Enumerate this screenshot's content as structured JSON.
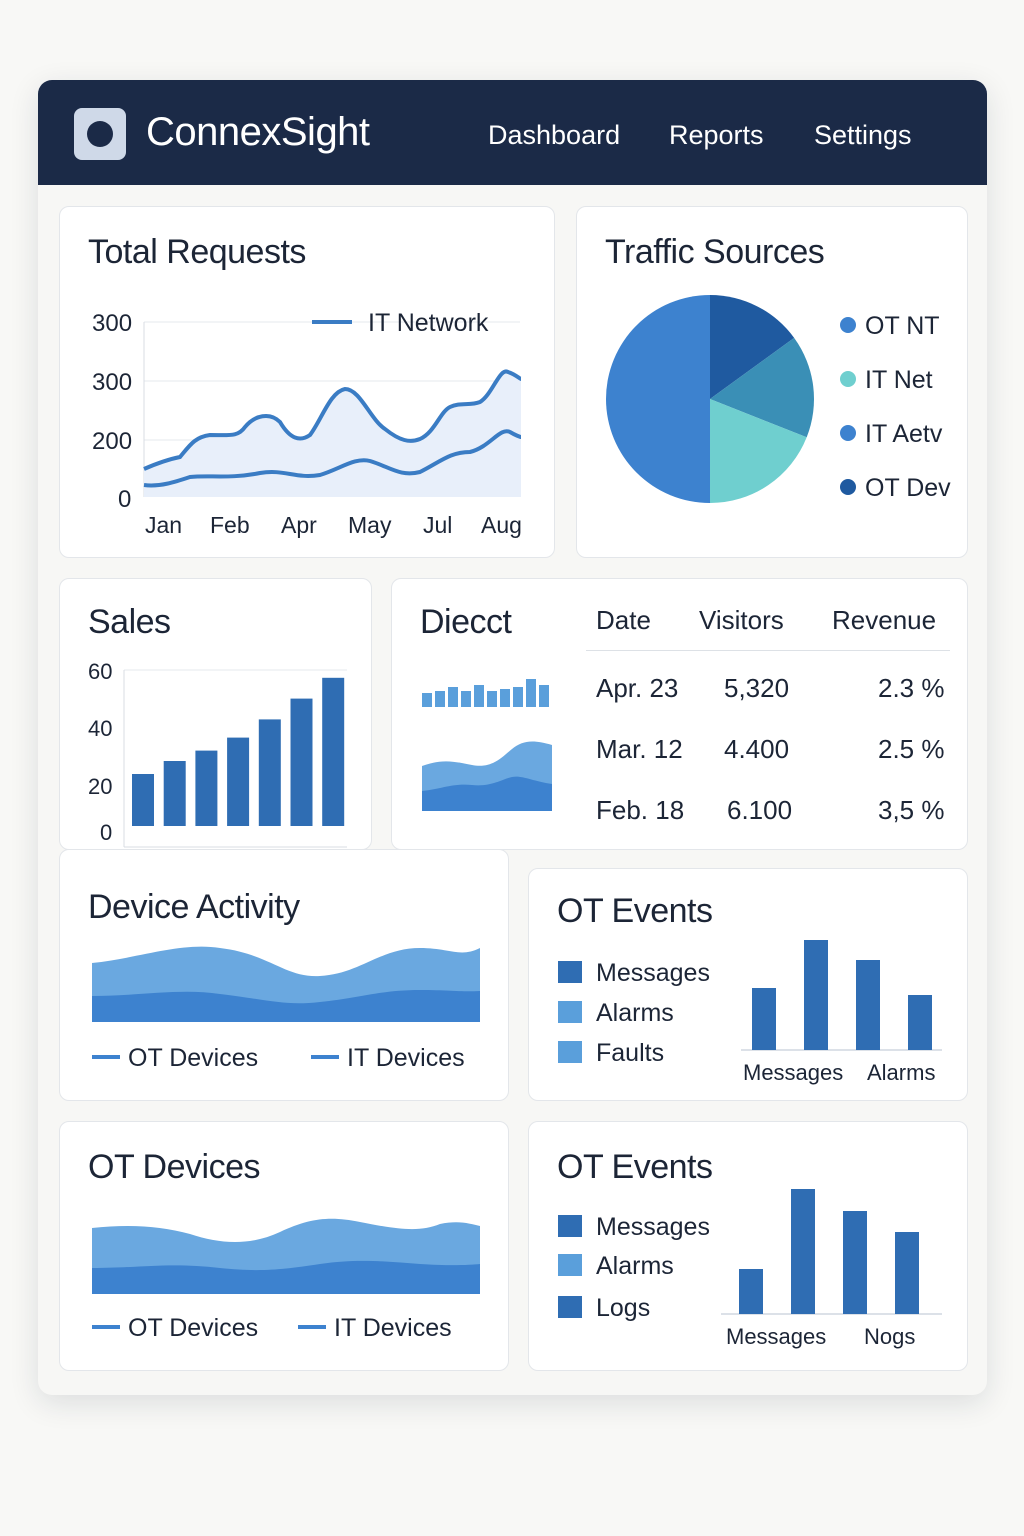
{
  "app": {
    "brand": "ConnexSight",
    "nav": [
      "Dashboard",
      "Reports",
      "Settings"
    ]
  },
  "colors": {
    "header_bg": "#1b2a47",
    "primary_blue": "#2f6db3",
    "light_blue": "#5a9fdb",
    "teal": "#6fcfcf",
    "dark_blue": "#1f5aa0"
  },
  "total_requests": {
    "title": "Total Requests",
    "legend": "IT Network",
    "y_ticks": [
      "300",
      "300",
      "200",
      "0"
    ],
    "x_ticks": [
      "Jan",
      "Feb",
      "Apr",
      "May",
      "Jul",
      "Aug"
    ]
  },
  "traffic_sources": {
    "title": "Traffic Sources",
    "legend": [
      "OT NT",
      "IT Net",
      "IT Aetv",
      "OT Dev"
    ]
  },
  "sales": {
    "title": "Sales",
    "y_ticks": [
      "60",
      "40",
      "20",
      "0"
    ]
  },
  "direct": {
    "title": "Diecct",
    "headers": [
      "Date",
      "Visitors",
      "Revenue"
    ],
    "rows": [
      [
        "Apr. 23",
        "5,320",
        "2.3 %"
      ],
      [
        "Mar. 12",
        "4.400",
        "2.5 %"
      ],
      [
        "Feb. 18",
        "6.100",
        "3,5 %"
      ]
    ]
  },
  "device_activity": {
    "title": "Device Activity",
    "legend": [
      "OT Devices",
      "IT Devices"
    ]
  },
  "ot_events_1": {
    "title": "OT Events",
    "legend": [
      "Messages",
      "Alarms",
      "Faults"
    ],
    "x_ticks": [
      "Messages",
      "Alarms"
    ]
  },
  "ot_devices": {
    "title": "OT Devices",
    "legend": [
      "OT Devices",
      "IT Devices"
    ]
  },
  "ot_events_2": {
    "title": "OT Events",
    "legend": [
      "Messages",
      "Alarms",
      "Logs"
    ],
    "x_ticks": [
      "Messages",
      "Nogs"
    ]
  },
  "chart_data": [
    {
      "type": "area",
      "title": "Total Requests",
      "categories": [
        "Jan",
        "Feb",
        "Apr",
        "May",
        "Jul",
        "Aug"
      ],
      "series": [
        {
          "name": "IT Network",
          "values": [
            200,
            235,
            190,
            262,
            235,
            310
          ]
        },
        {
          "values": [
            35,
            40,
            35,
            55,
            70,
            110
          ]
        }
      ]
    },
    {
      "type": "pie",
      "title": "Traffic Sources",
      "categories": [
        "OT NT",
        "IT Net",
        "IT Aetv",
        "OT Dev"
      ],
      "values": [
        15,
        16,
        19,
        50
      ]
    },
    {
      "type": "bar",
      "title": "Sales",
      "ylim": [
        0,
        60
      ],
      "values": [
        20,
        25,
        29,
        34,
        41,
        49,
        57
      ]
    },
    {
      "type": "bar",
      "title": "OT Events",
      "values": [
        62,
        110,
        90,
        55
      ]
    },
    {
      "type": "bar",
      "title": "OT Events",
      "values": [
        45,
        125,
        103,
        82
      ]
    }
  ]
}
